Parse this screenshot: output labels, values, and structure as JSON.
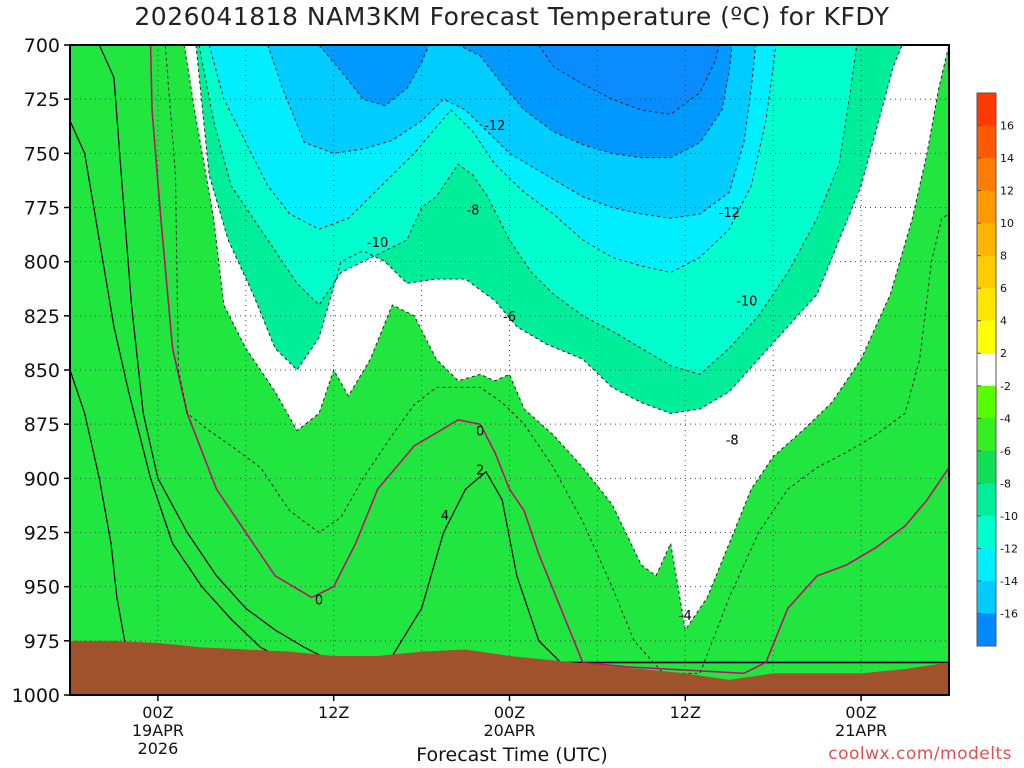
{
  "chart_data": {
    "type": "heatmap",
    "title": "2026041818 NAM3KM Forecast Temperature (ºC) for KFDY",
    "xlabel": "Forecast Time (UTC)",
    "ylabel": "",
    "y_axis": {
      "ticks": [
        700,
        725,
        750,
        775,
        800,
        825,
        850,
        875,
        900,
        925,
        950,
        975,
        1000
      ],
      "range": [
        700,
        1000
      ],
      "inverted": true
    },
    "x_axis": {
      "range_hours": [
        0,
        60
      ],
      "ticks": [
        {
          "hour": 6,
          "label": "00Z",
          "sub": "19APR",
          "sub2": "2026"
        },
        {
          "hour": 18,
          "label": "12Z",
          "sub": "",
          "sub2": ""
        },
        {
          "hour": 30,
          "label": "00Z",
          "sub": "20APR",
          "sub2": ""
        },
        {
          "hour": 42,
          "label": "12Z",
          "sub": "",
          "sub2": ""
        },
        {
          "hour": 54,
          "label": "00Z",
          "sub": "21APR",
          "sub2": ""
        }
      ]
    },
    "colorbar": {
      "levels": [
        -18,
        -16,
        -14,
        -12,
        -10,
        -8,
        -6,
        -4,
        -2,
        2,
        4,
        6,
        8,
        10,
        12,
        14,
        16,
        18
      ],
      "labels": [
        "16",
        "14",
        "12",
        "10",
        "8",
        "6",
        "4",
        "2",
        "-2",
        "-4",
        "-6",
        "-8",
        "-10",
        "-12",
        "-14",
        "-16"
      ],
      "colors": [
        "#ff3a00",
        "#ff5a00",
        "#ff7d00",
        "#ff9a00",
        "#ffb400",
        "#ffcc00",
        "#ffe600",
        "#ffff00",
        "#ffffff",
        "#58ff00",
        "#33ee22",
        "#11dd55",
        "#00ee99",
        "#00ffcc",
        "#00eeff",
        "#00ccff",
        "#0088ff"
      ]
    },
    "surface_color": "#a0522d",
    "contour_labels": [
      {
        "value": "0",
        "hour": 17.0,
        "p": 956
      },
      {
        "value": "0",
        "hour": 28.0,
        "p": 878
      },
      {
        "value": "2",
        "hour": 28.0,
        "p": 896
      },
      {
        "value": "4",
        "hour": 25.6,
        "p": 917
      },
      {
        "value": "-4",
        "hour": 42.0,
        "p": 963
      },
      {
        "value": "-6",
        "hour": 30.0,
        "p": 825
      },
      {
        "value": "-8",
        "hour": 27.5,
        "p": 776
      },
      {
        "value": "-8",
        "hour": 45.2,
        "p": 882
      },
      {
        "value": "-10",
        "hour": 21.0,
        "p": 791
      },
      {
        "value": "-10",
        "hour": 46.2,
        "p": 818
      },
      {
        "value": "-12",
        "hour": 29.0,
        "p": 737
      },
      {
        "value": "-12",
        "hour": 45.0,
        "p": 777
      }
    ],
    "grid": true,
    "legend": "right"
  },
  "credit": "coolwx.com/modelts"
}
